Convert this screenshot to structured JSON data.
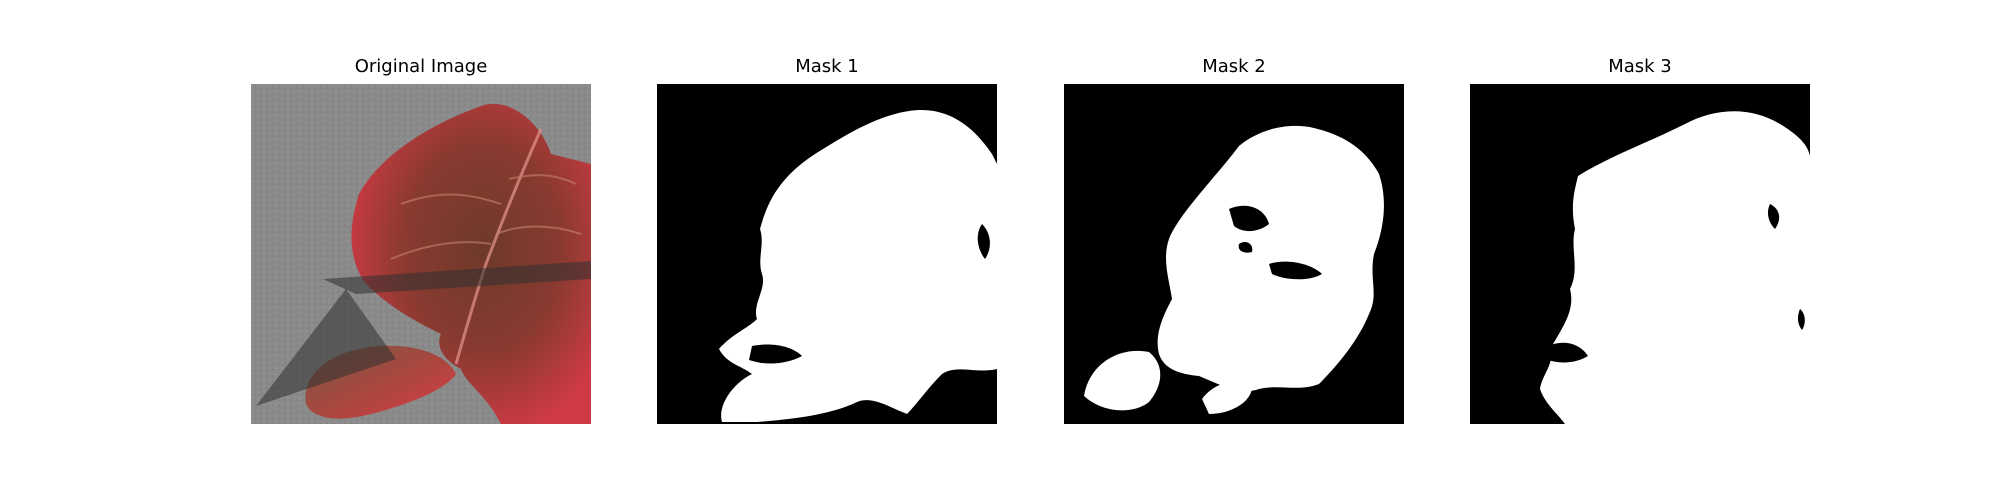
{
  "figure": {
    "panels": [
      {
        "title": "Original Image",
        "kind": "photo"
      },
      {
        "title": "Mask 1",
        "kind": "mask"
      },
      {
        "title": "Mask 2",
        "kind": "mask"
      },
      {
        "title": "Mask 3",
        "kind": "mask"
      }
    ],
    "colors": {
      "background": "#ffffff",
      "mask_fg": "#ffffff",
      "mask_bg": "#000000",
      "leaf_red": "#c0333a",
      "leaf_brown": "#6e3a2a",
      "surface_gray": "#8c8c8c",
      "shadow": "#2f2f2f"
    }
  }
}
